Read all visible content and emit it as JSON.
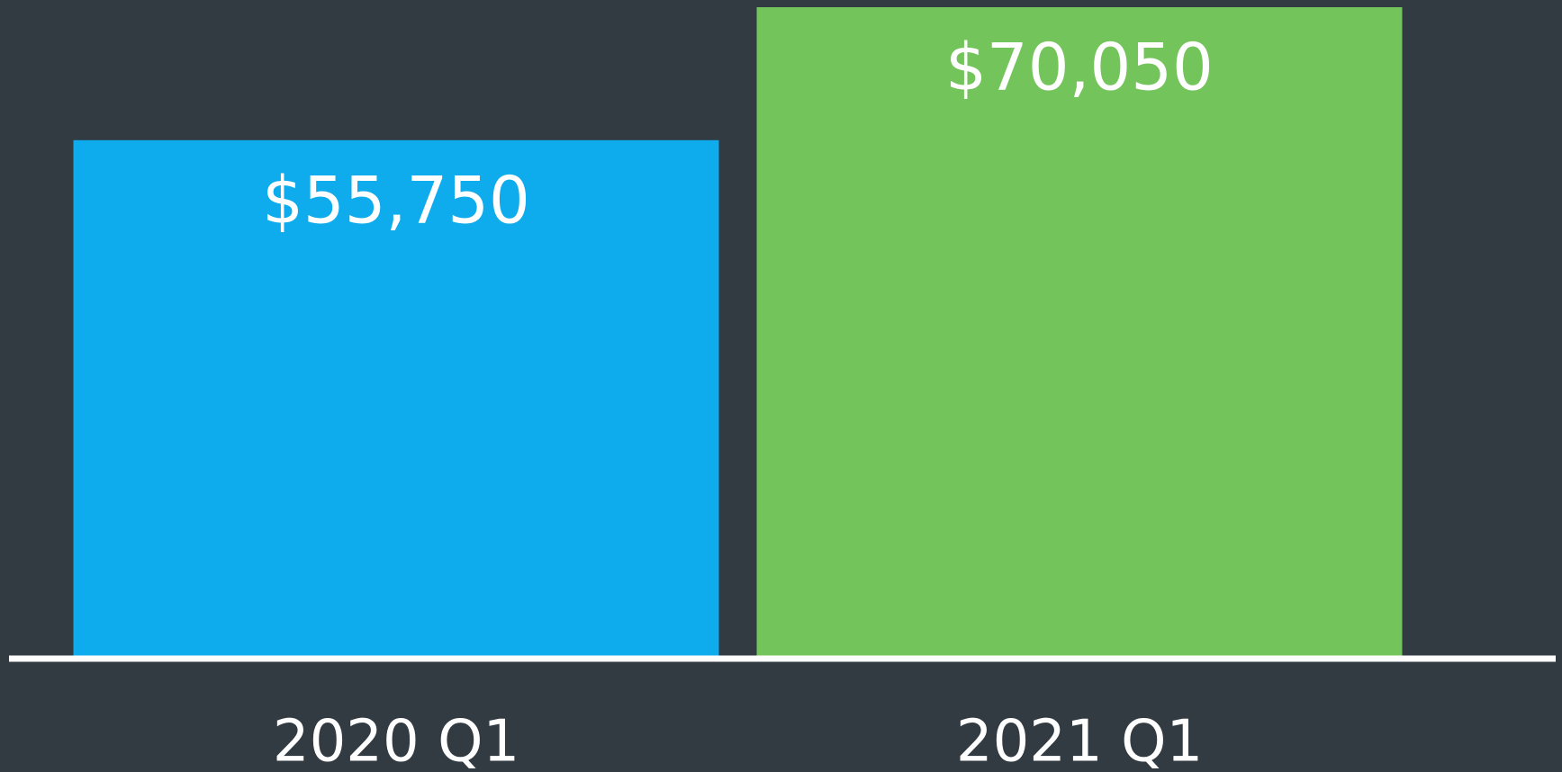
{
  "chart_data": {
    "type": "bar",
    "categories": [
      "2020 Q1",
      "2021 Q1"
    ],
    "values": [
      55750,
      70050
    ],
    "value_labels": [
      "$55,750",
      "$70,050"
    ],
    "colors": [
      "#0eacec",
      "#74c45c"
    ]
  }
}
